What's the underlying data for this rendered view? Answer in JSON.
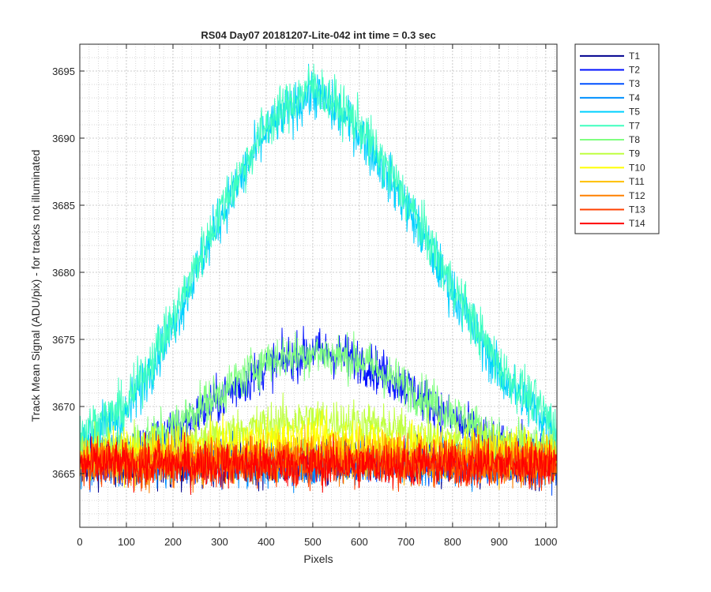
{
  "chart_data": {
    "type": "line",
    "title": "RS04 Day07 20181207-Lite-042 int time = 0.3 sec",
    "xlabel": "Pixels",
    "ylabel": "Track Mean Signal (ADU/pix) - for tracks not illuminated",
    "xlim": [
      0,
      1024
    ],
    "ylim": [
      3661,
      3697
    ],
    "xticks": [
      0,
      100,
      200,
      300,
      400,
      500,
      600,
      700,
      800,
      900,
      1000
    ],
    "yticks": [
      3665,
      3670,
      3675,
      3680,
      3685,
      3690,
      3695
    ],
    "grid": true,
    "minor_grid": true,
    "legend_position": "outside-top-right",
    "x_sample_points": [
      0,
      100,
      200,
      300,
      400,
      500,
      600,
      700,
      800,
      900,
      1024
    ],
    "series": [
      {
        "name": "T1",
        "color": "#00008f",
        "noise": 1.2,
        "values": [
          3665.8,
          3665.8,
          3665.8,
          3665.8,
          3665.8,
          3665.8,
          3665.8,
          3665.8,
          3665.8,
          3665.8,
          3665.8
        ]
      },
      {
        "name": "T2",
        "color": "#0010ff",
        "noise": 1.2,
        "values": [
          3666.0,
          3666.5,
          3668.0,
          3670.5,
          3673.0,
          3674.2,
          3673.5,
          3671.5,
          3669.0,
          3667.0,
          3666.2
        ]
      },
      {
        "name": "T3",
        "color": "#0050ff",
        "noise": 1.2,
        "values": [
          3665.9,
          3665.9,
          3665.9,
          3665.9,
          3665.9,
          3665.9,
          3665.9,
          3665.9,
          3665.9,
          3665.9,
          3665.9
        ]
      },
      {
        "name": "T4",
        "color": "#0090ff",
        "noise": 1.2,
        "values": [
          3665.8,
          3665.8,
          3665.8,
          3665.8,
          3665.8,
          3665.8,
          3665.8,
          3665.8,
          3665.8,
          3665.8,
          3665.8
        ]
      },
      {
        "name": "T5",
        "color": "#00d0ff",
        "noise": 1.3,
        "values": [
          3667.5,
          3669.5,
          3676.0,
          3684.0,
          3690.5,
          3693.5,
          3690.5,
          3685.0,
          3678.5,
          3672.5,
          3668.0
        ]
      },
      {
        "name": "T7",
        "color": "#40ffbf",
        "noise": 1.3,
        "values": [
          3668.0,
          3670.0,
          3676.5,
          3684.5,
          3691.0,
          3694.0,
          3691.0,
          3685.5,
          3679.0,
          3673.0,
          3668.5
        ]
      },
      {
        "name": "T8",
        "color": "#80ff80",
        "noise": 1.2,
        "values": [
          3666.5,
          3667.0,
          3668.5,
          3671.0,
          3673.5,
          3674.0,
          3673.5,
          3671.5,
          3669.5,
          3667.5,
          3666.5
        ]
      },
      {
        "name": "T9",
        "color": "#bfff40",
        "noise": 1.2,
        "values": [
          3666.5,
          3666.6,
          3667.0,
          3667.8,
          3668.6,
          3669.0,
          3668.8,
          3668.0,
          3667.5,
          3667.0,
          3666.6
        ]
      },
      {
        "name": "T10",
        "color": "#ffff00",
        "noise": 1.2,
        "values": [
          3666.4,
          3666.5,
          3666.7,
          3667.0,
          3667.4,
          3667.6,
          3667.5,
          3667.1,
          3666.8,
          3666.6,
          3666.5
        ]
      },
      {
        "name": "T11",
        "color": "#ffbf00",
        "noise": 1.2,
        "values": [
          3666.0,
          3666.0,
          3666.1,
          3666.2,
          3666.3,
          3666.4,
          3666.4,
          3666.2,
          3666.1,
          3666.0,
          3666.0
        ]
      },
      {
        "name": "T12",
        "color": "#ff8000",
        "noise": 1.2,
        "values": [
          3665.8,
          3665.8,
          3665.8,
          3665.9,
          3666.0,
          3666.0,
          3666.0,
          3665.9,
          3665.8,
          3665.8,
          3665.8
        ]
      },
      {
        "name": "T13",
        "color": "#ff4000",
        "noise": 1.2,
        "values": [
          3665.8,
          3665.8,
          3665.8,
          3665.8,
          3665.8,
          3665.8,
          3665.8,
          3665.8,
          3665.8,
          3665.8,
          3665.8
        ]
      },
      {
        "name": "T14",
        "color": "#ff0000",
        "noise": 1.2,
        "values": [
          3665.7,
          3665.7,
          3665.7,
          3665.7,
          3665.7,
          3665.7,
          3665.7,
          3665.7,
          3665.7,
          3665.7,
          3665.7
        ]
      }
    ]
  }
}
